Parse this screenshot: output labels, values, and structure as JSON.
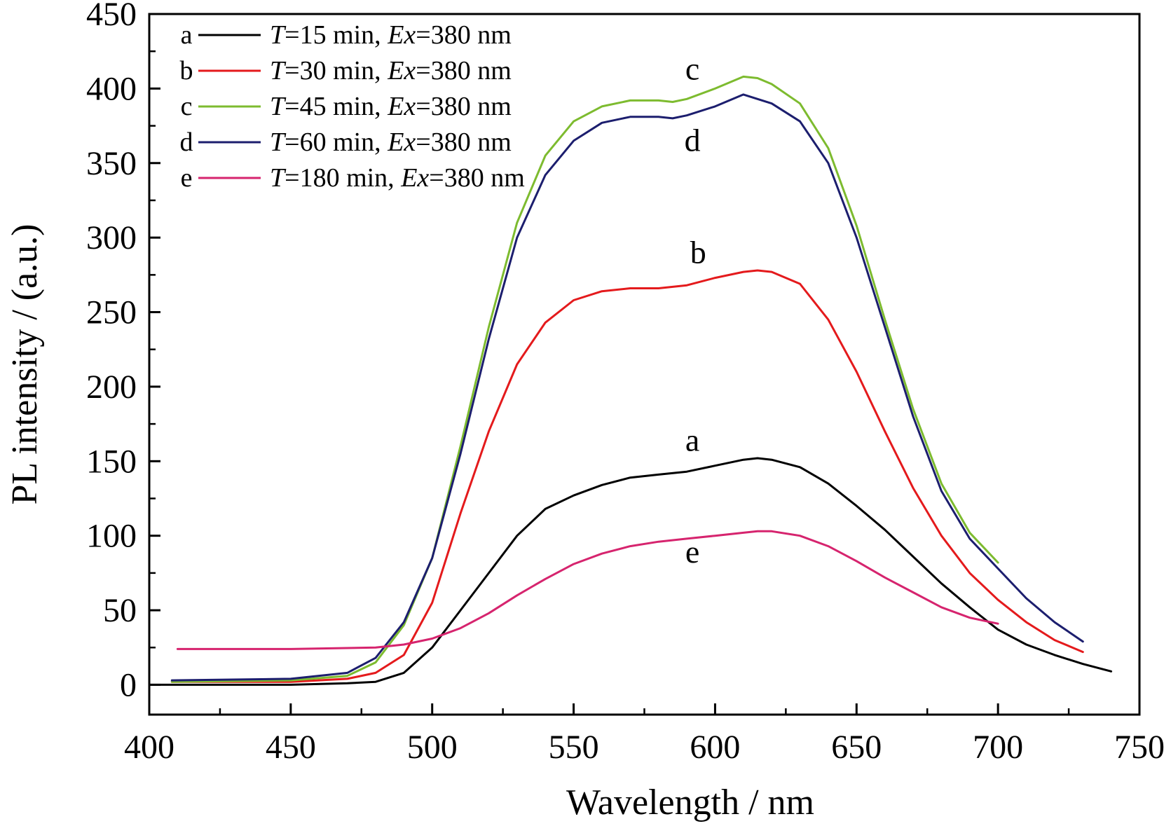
{
  "chart_data": {
    "type": "line",
    "title": "",
    "xlabel": "Wavelength / nm",
    "ylabel": "PL intensity / (a.u.)",
    "xlim": [
      400,
      750
    ],
    "ylim": [
      -20,
      450
    ],
    "xticks": [
      400,
      450,
      500,
      550,
      600,
      650,
      700,
      750
    ],
    "yticks": [
      0,
      50,
      100,
      150,
      200,
      250,
      300,
      350,
      400,
      450
    ],
    "grid": false,
    "legend_position": "top-left",
    "series": [
      {
        "id": "a",
        "letter": "a",
        "name_prefix": "T",
        "name_text": "=15 min, ",
        "name_ex": "Ex",
        "name_suffix": "=380 nm",
        "color": "#000000",
        "x": [
          400,
          450,
          470,
          480,
          490,
          500,
          510,
          520,
          530,
          540,
          550,
          560,
          570,
          580,
          590,
          600,
          610,
          615,
          620,
          630,
          640,
          650,
          660,
          670,
          680,
          690,
          700,
          710,
          720,
          730,
          740
        ],
        "y": [
          0,
          0,
          1,
          2,
          8,
          25,
          50,
          75,
          100,
          118,
          127,
          134,
          139,
          141,
          143,
          147,
          151,
          152,
          151,
          146,
          135,
          120,
          104,
          86,
          68,
          52,
          37,
          27,
          20,
          14,
          9
        ]
      },
      {
        "id": "b",
        "letter": "b",
        "name_prefix": "T",
        "name_text": "=30 min, ",
        "name_ex": "Ex",
        "name_suffix": "=380 nm",
        "color": "#e41a1c",
        "x": [
          408,
          450,
          470,
          480,
          490,
          500,
          510,
          520,
          530,
          540,
          550,
          560,
          570,
          580,
          590,
          600,
          610,
          615,
          620,
          630,
          640,
          650,
          660,
          670,
          680,
          690,
          700,
          710,
          720,
          730
        ],
        "y": [
          2,
          2,
          4,
          8,
          20,
          55,
          115,
          170,
          215,
          243,
          258,
          264,
          266,
          266,
          268,
          273,
          277,
          278,
          277,
          269,
          245,
          210,
          170,
          132,
          100,
          75,
          57,
          42,
          30,
          22
        ]
      },
      {
        "id": "c",
        "letter": "c",
        "name_prefix": "T",
        "name_text": "=45 min, ",
        "name_ex": "Ex",
        "name_suffix": "=380 nm",
        "color": "#7dbb2f",
        "x": [
          408,
          450,
          470,
          480,
          490,
          500,
          510,
          520,
          530,
          540,
          550,
          560,
          570,
          580,
          585,
          590,
          600,
          605,
          610,
          615,
          620,
          630,
          640,
          650,
          660,
          670,
          680,
          690,
          700
        ],
        "y": [
          2,
          3,
          6,
          15,
          40,
          85,
          160,
          240,
          310,
          355,
          378,
          388,
          392,
          392,
          391,
          393,
          400,
          404,
          408,
          407,
          403,
          390,
          360,
          308,
          245,
          185,
          135,
          102,
          82
        ]
      },
      {
        "id": "d",
        "letter": "d",
        "name_prefix": "T",
        "name_text": "=60 min, ",
        "name_ex": "Ex",
        "name_suffix": "=380 nm",
        "color": "#1c1e6e",
        "x": [
          408,
          450,
          470,
          480,
          490,
          500,
          510,
          520,
          530,
          540,
          550,
          560,
          570,
          580,
          585,
          590,
          600,
          605,
          610,
          615,
          620,
          630,
          640,
          650,
          660,
          670,
          680,
          690,
          700,
          710,
          720,
          730
        ],
        "y": [
          3,
          4,
          8,
          18,
          42,
          85,
          155,
          232,
          300,
          342,
          365,
          377,
          381,
          381,
          380,
          382,
          388,
          392,
          396,
          393,
          390,
          378,
          350,
          300,
          240,
          180,
          130,
          98,
          78,
          58,
          42,
          29
        ]
      },
      {
        "id": "e",
        "letter": "e",
        "name_prefix": "T",
        "name_text": "=180 min, ",
        "name_ex": "Ex",
        "name_suffix": "=380 nm",
        "color": "#d6246e",
        "x": [
          410,
          450,
          480,
          490,
          500,
          510,
          520,
          530,
          540,
          550,
          560,
          570,
          580,
          590,
          600,
          610,
          615,
          620,
          630,
          640,
          650,
          660,
          670,
          680,
          690,
          700
        ],
        "y": [
          24,
          24,
          25,
          27,
          31,
          38,
          48,
          60,
          71,
          81,
          88,
          93,
          96,
          98,
          100,
          102,
          103,
          103,
          100,
          93,
          83,
          72,
          62,
          52,
          45,
          41
        ]
      }
    ],
    "annotations": [
      {
        "text": "c",
        "x": 592,
        "y": 406
      },
      {
        "text": "d",
        "x": 592,
        "y": 358
      },
      {
        "text": "b",
        "x": 594,
        "y": 283
      },
      {
        "text": "a",
        "x": 592,
        "y": 157
      },
      {
        "text": "e",
        "x": 592,
        "y": 82
      }
    ]
  }
}
